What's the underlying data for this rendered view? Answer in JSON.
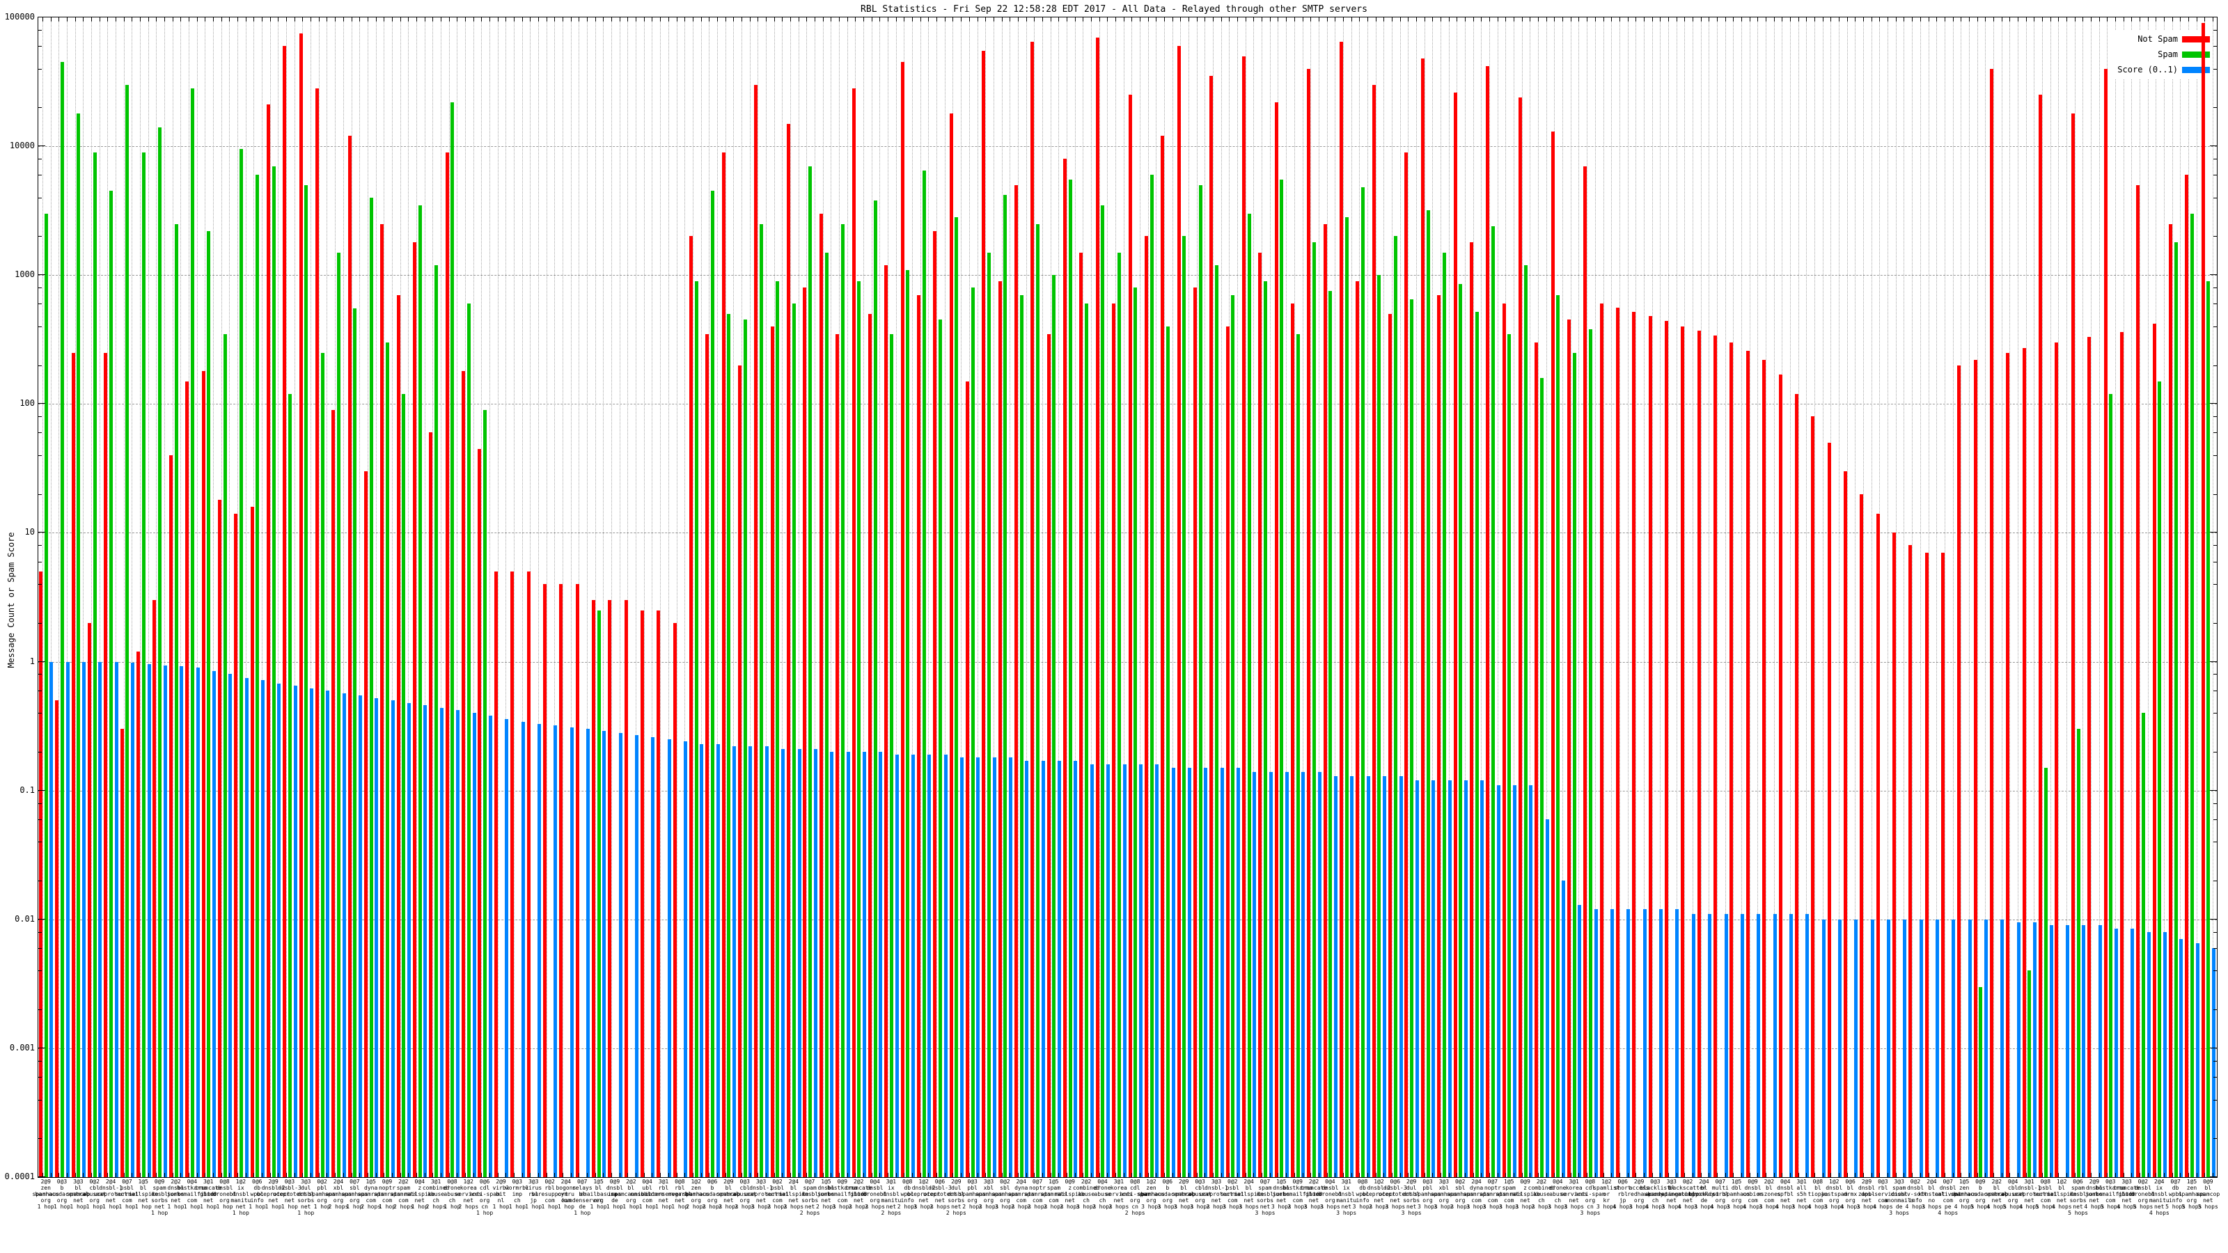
{
  "title": "RBL Statistics - Fri Sep 22 12:58:28 EDT 2017 - All Data - Relayed through other SMTP servers",
  "y_axis": {
    "label": "Message Count or Spam Score",
    "ticks": [
      "100000",
      "10000",
      "1000",
      "100",
      "10",
      "1",
      "0.1",
      "0.01",
      "0.001",
      "0.0001"
    ]
  },
  "legend": {
    "entries": [
      {
        "label": "Not Spam",
        "color": "#ff0000"
      },
      {
        "label": "Spam",
        "color": "#00c400"
      },
      {
        "label": "Score (0..1)",
        "color": "#0084ff"
      }
    ]
  },
  "chart_data": {
    "type": "bar",
    "scale": "log-y",
    "ylim": [
      0.0001,
      100000
    ],
    "grid": true,
    "legend_position": "top-right",
    "title": "RBL Statistics - Fri Sep 22 12:58:28 EDT 2017 - All Data - Relayed through other SMTP servers",
    "ylabel": "Message Count or Spam Score",
    "series": [
      {
        "name": "Not Spam",
        "color": "#ff0000",
        "values": [
          5,
          0.5,
          250,
          2,
          250,
          0.3,
          1.2,
          3,
          40,
          150,
          180,
          18,
          14,
          16,
          21000,
          60000,
          75000,
          28000,
          90,
          12000,
          30,
          2500,
          700,
          1800,
          60,
          9000,
          180,
          45,
          5,
          5,
          5,
          4,
          4,
          4,
          3,
          3,
          3,
          2.5,
          2.5,
          2,
          2000,
          350,
          9000,
          200,
          30000,
          400,
          15000,
          800,
          3000,
          350,
          28000,
          500,
          1200,
          45000,
          700,
          2200,
          18000,
          150,
          55000,
          900,
          5000,
          65000,
          350,
          8000,
          1500,
          70000,
          600,
          25000,
          2000,
          12000,
          60000,
          800,
          35000,
          400,
          50000,
          1500,
          22000,
          600,
          40000,
          2500,
          65000,
          900,
          30000,
          500,
          9000,
          48000,
          700,
          26000,
          1800,
          42000,
          600,
          24000,
          300,
          13000,
          450,
          7000,
          600,
          560,
          520,
          480,
          440,
          400,
          370,
          340,
          300,
          260,
          220,
          170,
          120,
          80,
          50,
          30,
          20,
          14,
          10,
          8,
          7,
          7,
          200,
          220,
          40000,
          250,
          270,
          25000,
          300,
          18000,
          330,
          40000,
          360,
          5000,
          420,
          2500,
          6000,
          90000
        ]
      },
      {
        "name": "Spam",
        "color": "#00c400",
        "values": [
          3000,
          45000,
          18000,
          9000,
          4500,
          30000,
          9000,
          14000,
          2500,
          28000,
          2200,
          350,
          9500,
          6000,
          7000,
          120,
          5000,
          250,
          1500,
          550,
          4000,
          300,
          120,
          3500,
          1200,
          22000,
          600,
          90,
          0,
          0,
          0,
          0,
          0,
          0,
          2.5,
          0,
          0,
          0,
          0,
          0,
          900,
          4500,
          500,
          450,
          2500,
          900,
          600,
          7000,
          1500,
          2500,
          900,
          3800,
          350,
          1100,
          6500,
          450,
          2800,
          800,
          1500,
          4200,
          700,
          2500,
          1000,
          5500,
          600,
          3500,
          1500,
          800,
          6000,
          400,
          2000,
          5000,
          1200,
          700,
          3000,
          900,
          5500,
          350,
          1800,
          750,
          2800,
          4800,
          1000,
          2000,
          650,
          3200,
          1500,
          850,
          520,
          2400,
          350,
          1200,
          160,
          700,
          250,
          380,
          0,
          0,
          0,
          0,
          0,
          0,
          0,
          0,
          0,
          0,
          0,
          0,
          0,
          0,
          0,
          0,
          0,
          0,
          0,
          0,
          0,
          0,
          0,
          0.003,
          0,
          0,
          0.004,
          0.15,
          0,
          0.3,
          0,
          120,
          0,
          0.4,
          150,
          1800,
          3000,
          900
        ]
      },
      {
        "name": "Score (0..1)",
        "color": "#0084ff",
        "values": [
          1,
          1,
          1,
          1,
          1,
          0.98,
          0.96,
          0.94,
          0.92,
          0.9,
          0.85,
          0.8,
          0.75,
          0.72,
          0.68,
          0.65,
          0.62,
          0.6,
          0.57,
          0.55,
          0.52,
          0.5,
          0.48,
          0.46,
          0.44,
          0.42,
          0.4,
          0.38,
          0.36,
          0.34,
          0.33,
          0.32,
          0.31,
          0.3,
          0.29,
          0.28,
          0.27,
          0.26,
          0.25,
          0.24,
          0.23,
          0.23,
          0.22,
          0.22,
          0.22,
          0.21,
          0.21,
          0.21,
          0.2,
          0.2,
          0.2,
          0.2,
          0.19,
          0.19,
          0.19,
          0.19,
          0.18,
          0.18,
          0.18,
          0.18,
          0.17,
          0.17,
          0.17,
          0.17,
          0.16,
          0.16,
          0.16,
          0.16,
          0.16,
          0.15,
          0.15,
          0.15,
          0.15,
          0.15,
          0.14,
          0.14,
          0.14,
          0.14,
          0.14,
          0.13,
          0.13,
          0.13,
          0.13,
          0.13,
          0.12,
          0.12,
          0.12,
          0.12,
          0.12,
          0.11,
          0.11,
          0.11,
          0.06,
          0.02,
          0.013,
          0.012,
          0.012,
          0.012,
          0.012,
          0.012,
          0.012,
          0.011,
          0.011,
          0.011,
          0.011,
          0.011,
          0.011,
          0.011,
          0.011,
          0.01,
          0.01,
          0.01,
          0.01,
          0.01,
          0.01,
          0.01,
          0.01,
          0.01,
          0.01,
          0.01,
          0.01,
          0.0095,
          0.0095,
          0.009,
          0.009,
          0.009,
          0.009,
          0.0085,
          0.0085,
          0.008,
          0.008,
          0.007,
          0.0065,
          0.006
        ]
      }
    ],
    "categories": [
      "zen.spamhaus.org",
      "b.barracudacentral.org",
      "bl.spamcop.net",
      "cbl.abuseat.org",
      "dnsbl-1.uceprotect.net",
      "psbl.surriel.com",
      "bl.mailspike.net",
      "spam.dnsbl.sorbs.net",
      "dnsbl.sorbs.net",
      "hostkarma.junkemailfilter.com",
      "truncate.gbudb.net",
      "dnsbl.dronebl.org",
      "ix.dnsbl.manitu.net",
      "db.wpbl.info",
      "dnsbl-2.uceprotect.net",
      "dnsbl-3.uceprotect.net",
      "dul.dnsbl.sorbs.net",
      "pbl.spamhaus.org",
      "xbl.spamhaus.org",
      "sbl.spamhaus.org",
      "dyna.spamrats.com",
      "noptr.spamrats.com",
      "spam.spamrats.com",
      "z.mailspike.net",
      "combined.abuse.ch",
      "drone.abuse.ch",
      "korea.services.net",
      "cdl.anti-spam.org.cn",
      "virbl.bit.nl",
      "wormrbl.imp.ch",
      "virus.rbl.jp",
      "rbl.suresupport.com",
      "bogons.cymru.com",
      "relays.bl.kundenserver.de",
      "bl.emailbasura.org",
      "dnsbl.inps.de",
      "bl.spamcannibal.org",
      "ubl.unsubscore.com",
      "rbl.interserver.net",
      "rbl.megarbl.net",
      "zen.spamhaus.org",
      "b.barracudacentral.org",
      "bl.spamcop.net",
      "cbl.abuseat.org",
      "dnsbl-1.uceprotect.net",
      "psbl.surriel.com",
      "bl.mailspike.net",
      "spam.dnsbl.sorbs.net",
      "dnsbl.sorbs.net",
      "hostkarma.junkemailfilter.com",
      "truncate.gbudb.net",
      "dnsbl.dronebl.org",
      "ix.dnsbl.manitu.net",
      "db.wpbl.info",
      "dnsbl-2.uceprotect.net",
      "dnsbl-3.uceprotect.net",
      "dul.dnsbl.sorbs.net",
      "pbl.spamhaus.org",
      "xbl.spamhaus.org",
      "sbl.spamhaus.org",
      "dyna.spamrats.com",
      "noptr.spamrats.com",
      "spam.spamrats.com",
      "z.mailspike.net",
      "combined.abuse.ch",
      "drone.abuse.ch",
      "korea.services.net",
      "cdl.anti-spam.org.cn",
      "zen.spamhaus.org",
      "b.barracudacentral.org",
      "bl.spamcop.net",
      "cbl.abuseat.org",
      "dnsbl-1.uceprotect.net",
      "psbl.surriel.com",
      "bl.mailspike.net",
      "spam.dnsbl.sorbs.net",
      "dnsbl.sorbs.net",
      "hostkarma.junkemailfilter.com",
      "truncate.gbudb.net",
      "dnsbl.dronebl.org",
      "ix.dnsbl.manitu.net",
      "db.wpbl.info",
      "dnsbl-2.uceprotect.net",
      "dnsbl-3.uceprotect.net",
      "dul.dnsbl.sorbs.net",
      "pbl.spamhaus.org",
      "xbl.spamhaus.org",
      "sbl.spamhaus.org",
      "dyna.spamrats.com",
      "noptr.spamrats.com",
      "spam.spamrats.com",
      "z.mailspike.net",
      "combined.abuse.ch",
      "drone.abuse.ch",
      "korea.services.net",
      "cdl.anti-spam.org.cn",
      "spamlist.or.kr",
      "short.rbl.jp",
      "access.redhawk.org",
      "blacklist.woody.ch",
      "bl.spameatingmonkey.net",
      "backscatter.spameatingmonkey.net",
      "bl.blocklist.de",
      "multi.surbl.org",
      "dbl.spamhaus.org",
      "dnsbl.cobion.com",
      "bl.nszones.com",
      "dnsbl.spfbl.net",
      "all.s5h.net",
      "bl.tiopan.com",
      "dnsbl.justspam.org",
      "bl.drmx.org",
      "dnsbl.zapbl.net",
      "rbl.dns-servicios.com",
      "spam.dnsbl.anonmails.de",
      "dnsbl.rv-soft.info",
      "bl.konstant.no",
      "dnsbl.calivent.com.pe",
      "zen.spamhaus.org",
      "b.barracudacentral.org",
      "bl.spamcop.net",
      "cbl.abuseat.org",
      "dnsbl-1.uceprotect.net",
      "psbl.surriel.com",
      "bl.mailspike.net",
      "spam.dnsbl.sorbs.net",
      "dnsbl.sorbs.net",
      "hostkarma.junkemailfilter.com",
      "truncate.gbudb.net",
      "dnsbl.dronebl.org",
      "ix.dnsbl.manitu.net",
      "db.wpbl.info",
      "zen.spamhaus.org",
      "bl.spamcop.net"
    ],
    "category_hops": [
      "1 hop",
      "1 hop",
      "1 hop",
      "1 hop",
      "1 hop",
      "1 hop",
      "1 hop",
      "1 hop",
      "1 hop",
      "1 hop",
      "1 hop",
      "1 hop",
      "1 hop",
      "1 hop",
      "1 hop",
      "1 hop",
      "1 hop",
      "1 hop",
      "2 hops",
      "1 hop",
      "2 hops",
      "1 hop",
      "2 hops",
      "1 hop",
      "2 hops",
      "1 hop",
      "2 hops",
      "1 hop",
      "1 hop",
      "1 hop",
      "1 hop",
      "1 hop",
      "1 hop",
      "1 hop",
      "1 hop",
      "1 hop",
      "1 hop",
      "1 hop",
      "1 hop",
      "1 hop",
      "2 hops",
      "2 hops",
      "2 hops",
      "2 hops",
      "3 hops",
      "2 hops",
      "2 hops",
      "2 hops",
      "2 hops",
      "3 hops",
      "2 hops",
      "2 hops",
      "2 hops",
      "2 hops",
      "3 hops",
      "2 hops",
      "2 hops",
      "2 hops",
      "2 hops",
      "3 hops",
      "2 hops",
      "2 hops",
      "2 hops",
      "2 hops",
      "3 hops",
      "2 hops",
      "2 hops",
      "2 hops",
      "3 hops",
      "3 hops",
      "3 hops",
      "3 hops",
      "2 hops",
      "3 hops",
      "3 hops",
      "3 hops",
      "3 hops",
      "2 hops",
      "3 hops",
      "3 hops",
      "3 hops",
      "3 hops",
      "2 hops",
      "3 hops",
      "3 hops",
      "3 hops",
      "3 hops",
      "2 hops",
      "3 hops",
      "3 hops",
      "3 hops",
      "3 hops",
      "2 hops",
      "3 hops",
      "3 hops",
      "3 hops",
      "3 hops",
      "4 hops",
      "3 hops",
      "4 hops",
      "3 hops",
      "4 hops",
      "3 hops",
      "4 hops",
      "3 hops",
      "4 hops",
      "3 hops",
      "4 hops",
      "3 hops",
      "4 hops",
      "3 hops",
      "4 hops",
      "3 hops",
      "4 hops",
      "3 hops",
      "4 hops",
      "3 hops",
      "4 hops",
      "4 hops",
      "5 hops",
      "4 hops",
      "5 hops",
      "4 hops",
      "5 hops",
      "4 hops",
      "5 hops",
      "4 hops",
      "5 hops",
      "4 hops",
      "5 hops",
      "4 hops",
      "5 hops",
      "5 hops",
      "5 hops"
    ],
    "category_tag_cycle": [
      "2@9",
      "0@3",
      "3@3",
      "0@2",
      "2@4",
      "0@7",
      "1@5",
      "0@9",
      "2@2",
      "0@4",
      "3@1",
      "0@8",
      "1@2",
      "0@6"
    ]
  }
}
